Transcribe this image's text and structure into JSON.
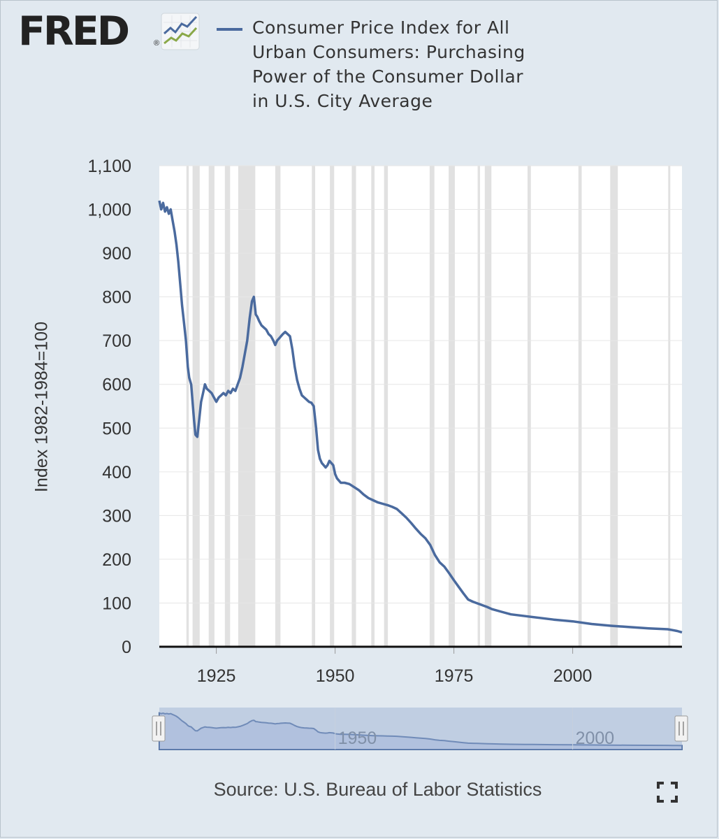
{
  "logo": {
    "text": "FRED",
    "registered": "®"
  },
  "legend": {
    "label": "Consumer Price Index for All Urban Consumers: Purchasing Power of the Consumer Dollar in U.S. City Average",
    "color": "#4a6a9e"
  },
  "source": "Source: U.S. Bureau of Labor Statistics",
  "icons": {
    "fullscreen": "fullscreen-icon"
  },
  "colors": {
    "background": "#e1e9f0",
    "series": "#4a6a9e",
    "recession": "#e1e1e1",
    "navigator_fill": "#bfcde3"
  },
  "chart_data": {
    "type": "line",
    "title": "Consumer Price Index for All Urban Consumers: Purchasing Power of the Consumer Dollar in U.S. City Average",
    "ylabel": "Index 1982-1984=100",
    "xlabel": "",
    "xlim": [
      1913,
      2023
    ],
    "ylim": [
      0,
      1100
    ],
    "y_ticks": [
      0,
      100,
      200,
      300,
      400,
      500,
      600,
      700,
      800,
      900,
      1000,
      1100
    ],
    "y_tick_labels": [
      "0",
      "100",
      "200",
      "300",
      "400",
      "500",
      "600",
      "700",
      "800",
      "900",
      "1,000",
      "1,100"
    ],
    "x_ticks": [
      1925,
      1950,
      1975,
      2000
    ],
    "x_tick_labels": [
      "1925",
      "1950",
      "1975",
      "2000"
    ],
    "grid": true,
    "recessions": [
      [
        1918.7,
        1919.2
      ],
      [
        1920.0,
        1921.5
      ],
      [
        1923.4,
        1924.6
      ],
      [
        1926.8,
        1927.9
      ],
      [
        1929.6,
        1933.2
      ],
      [
        1937.4,
        1938.5
      ],
      [
        1945.1,
        1945.8
      ],
      [
        1948.9,
        1949.8
      ],
      [
        1953.5,
        1954.4
      ],
      [
        1957.6,
        1958.3
      ],
      [
        1960.3,
        1961.1
      ],
      [
        1969.9,
        1970.9
      ],
      [
        1973.9,
        1975.2
      ],
      [
        1980.0,
        1980.5
      ],
      [
        1981.5,
        1982.9
      ],
      [
        1990.5,
        1991.2
      ],
      [
        2001.2,
        2001.9
      ],
      [
        2007.9,
        2009.5
      ],
      [
        2020.1,
        2020.4
      ]
    ],
    "series": [
      {
        "name": "Consumer Price Index for All Urban Consumers: Purchasing Power of the Consumer Dollar in U.S. City Average",
        "color": "#4a6a9e",
        "x": [
          1913.0,
          1913.4,
          1913.8,
          1914.2,
          1914.6,
          1915.0,
          1915.4,
          1915.8,
          1916.2,
          1916.6,
          1917.0,
          1917.4,
          1917.8,
          1918.2,
          1918.6,
          1919.0,
          1919.3,
          1919.7,
          1920.0,
          1920.3,
          1920.6,
          1921.0,
          1921.4,
          1921.8,
          1922.2,
          1922.6,
          1923.0,
          1923.5,
          1924.0,
          1924.5,
          1925.0,
          1925.5,
          1926.0,
          1926.5,
          1927.0,
          1927.5,
          1928.0,
          1928.5,
          1929.0,
          1929.5,
          1930.0,
          1930.5,
          1931.0,
          1931.5,
          1932.0,
          1932.5,
          1932.9,
          1933.1,
          1933.3,
          1933.6,
          1934.0,
          1934.5,
          1935.0,
          1935.5,
          1936.0,
          1936.5,
          1937.0,
          1937.4,
          1937.8,
          1938.2,
          1938.6,
          1939.0,
          1939.5,
          1940.0,
          1940.5,
          1941.0,
          1941.5,
          1942.0,
          1942.5,
          1943.0,
          1943.5,
          1944.0,
          1944.5,
          1945.0,
          1945.5,
          1946.0,
          1946.4,
          1946.8,
          1947.2,
          1947.6,
          1948.0,
          1948.4,
          1948.8,
          1949.2,
          1949.6,
          1950.0,
          1950.4,
          1950.8,
          1951.2,
          1951.6,
          1952.0,
          1953.0,
          1954.0,
          1955.0,
          1956.0,
          1957.0,
          1958.0,
          1959.0,
          1960.0,
          1961.0,
          1962.0,
          1963.0,
          1964.0,
          1965.0,
          1966.0,
          1967.0,
          1968.0,
          1969.0,
          1970.0,
          1971.0,
          1972.0,
          1973.0,
          1974.0,
          1975.0,
          1976.0,
          1977.0,
          1978.0,
          1979.0,
          1980.0,
          1981.0,
          1982.0,
          1983.0,
          1985.0,
          1987.0,
          1990.0,
          1993.0,
          1996.0,
          2000.0,
          2004.0,
          2008.0,
          2012.0,
          2016.0,
          2020.0,
          2021.0,
          2022.0,
          2023.0
        ],
        "y": [
          1020,
          1000,
          1015,
          995,
          1005,
          990,
          1000,
          975,
          950,
          920,
          880,
          830,
          780,
          740,
          700,
          640,
          615,
          600,
          560,
          520,
          485,
          480,
          520,
          560,
          580,
          600,
          590,
          585,
          580,
          570,
          560,
          570,
          575,
          580,
          575,
          585,
          580,
          590,
          585,
          600,
          615,
          640,
          670,
          700,
          750,
          790,
          800,
          780,
          760,
          755,
          745,
          735,
          730,
          725,
          715,
          710,
          700,
          690,
          700,
          705,
          710,
          715,
          720,
          715,
          710,
          680,
          640,
          610,
          590,
          575,
          570,
          565,
          560,
          558,
          550,
          500,
          450,
          430,
          420,
          415,
          410,
          415,
          425,
          420,
          415,
          395,
          385,
          380,
          375,
          375,
          375,
          372,
          365,
          358,
          348,
          340,
          335,
          330,
          327,
          324,
          320,
          315,
          305,
          295,
          283,
          270,
          258,
          248,
          233,
          210,
          193,
          183,
          168,
          152,
          137,
          122,
          108,
          103,
          99,
          95,
          91,
          86,
          80,
          74,
          70,
          66,
          62,
          58,
          52,
          48,
          45,
          42,
          40,
          38,
          36,
          33
        ]
      }
    ]
  }
}
